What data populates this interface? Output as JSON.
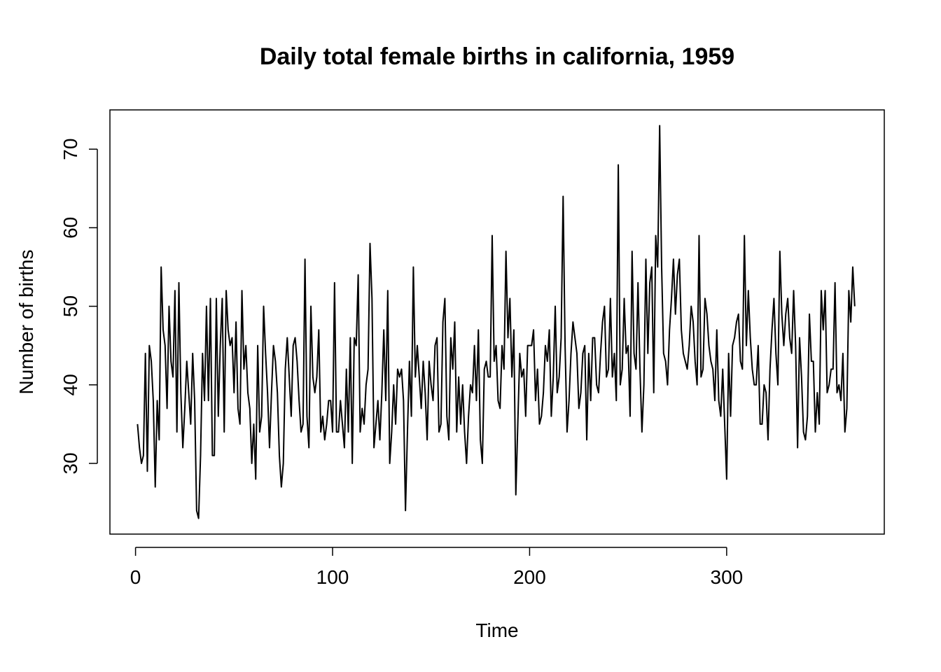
{
  "chart_data": {
    "type": "line",
    "title": "Daily total female births in california, 1959",
    "xlabel": "Time",
    "ylabel": "Number of births",
    "xlim": [
      -13,
      380
    ],
    "ylim": [
      21,
      75
    ],
    "xticks": [
      0,
      100,
      200,
      300
    ],
    "yticks": [
      30,
      40,
      50,
      60,
      70
    ],
    "grid": false,
    "legend": "none",
    "x_start": 1,
    "series": [
      {
        "values": [
          35,
          32,
          30,
          31,
          44,
          29,
          45,
          43,
          38,
          27,
          38,
          33,
          55,
          47,
          45,
          37,
          50,
          43,
          41,
          52,
          34,
          53,
          39,
          32,
          37,
          43,
          39,
          35,
          44,
          38,
          24,
          23,
          31,
          44,
          38,
          50,
          38,
          51,
          31,
          31,
          51,
          36,
          45,
          51,
          34,
          52,
          47,
          45,
          46,
          39,
          48,
          37,
          35,
          52,
          42,
          45,
          39,
          37,
          30,
          35,
          28,
          45,
          34,
          36,
          50,
          44,
          39,
          32,
          39,
          45,
          43,
          39,
          31,
          27,
          30,
          42,
          46,
          41,
          36,
          45,
          46,
          43,
          38,
          34,
          35,
          56,
          36,
          32,
          50,
          41,
          39,
          41,
          47,
          34,
          36,
          33,
          35,
          38,
          38,
          34,
          53,
          34,
          34,
          38,
          35,
          32,
          42,
          34,
          46,
          30,
          46,
          45,
          54,
          34,
          37,
          35,
          40,
          42,
          58,
          51,
          32,
          35,
          38,
          33,
          39,
          47,
          38,
          52,
          30,
          34,
          40,
          35,
          42,
          41,
          42,
          38,
          24,
          34,
          43,
          36,
          55,
          41,
          45,
          41,
          37,
          43,
          39,
          33,
          43,
          40,
          38,
          45,
          46,
          34,
          35,
          48,
          51,
          36,
          33,
          46,
          42,
          48,
          34,
          41,
          35,
          40,
          34,
          30,
          36,
          40,
          39,
          45,
          38,
          47,
          33,
          30,
          42,
          43,
          41,
          41,
          59,
          43,
          45,
          38,
          37,
          45,
          42,
          57,
          46,
          51,
          41,
          47,
          26,
          35,
          44,
          41,
          42,
          36,
          45,
          45,
          45,
          47,
          38,
          42,
          35,
          36,
          39,
          45,
          43,
          47,
          36,
          41,
          50,
          39,
          41,
          46,
          64,
          45,
          34,
          38,
          44,
          48,
          46,
          44,
          37,
          39,
          44,
          45,
          33,
          44,
          38,
          46,
          46,
          40,
          39,
          44,
          48,
          50,
          41,
          42,
          51,
          41,
          44,
          38,
          68,
          40,
          42,
          51,
          44,
          45,
          36,
          57,
          44,
          42,
          53,
          42,
          34,
          40,
          56,
          44,
          53,
          55,
          39,
          59,
          55,
          73,
          55,
          44,
          43,
          40,
          47,
          51,
          56,
          49,
          54,
          56,
          47,
          44,
          43,
          42,
          45,
          50,
          48,
          43,
          40,
          59,
          41,
          42,
          51,
          49,
          45,
          43,
          42,
          38,
          47,
          38,
          36,
          42,
          35,
          28,
          44,
          36,
          45,
          46,
          48,
          49,
          43,
          42,
          59,
          45,
          52,
          46,
          42,
          40,
          40,
          45,
          35,
          35,
          40,
          39,
          33,
          42,
          47,
          51,
          44,
          40,
          57,
          49,
          45,
          49,
          51,
          46,
          44,
          52,
          45,
          32,
          46,
          41,
          34,
          33,
          36,
          49,
          43,
          43,
          34,
          39,
          35,
          52,
          47,
          52,
          39,
          40,
          42,
          42,
          53,
          39,
          40,
          38,
          44,
          34,
          37,
          52,
          48,
          55,
          50
        ]
      }
    ]
  }
}
